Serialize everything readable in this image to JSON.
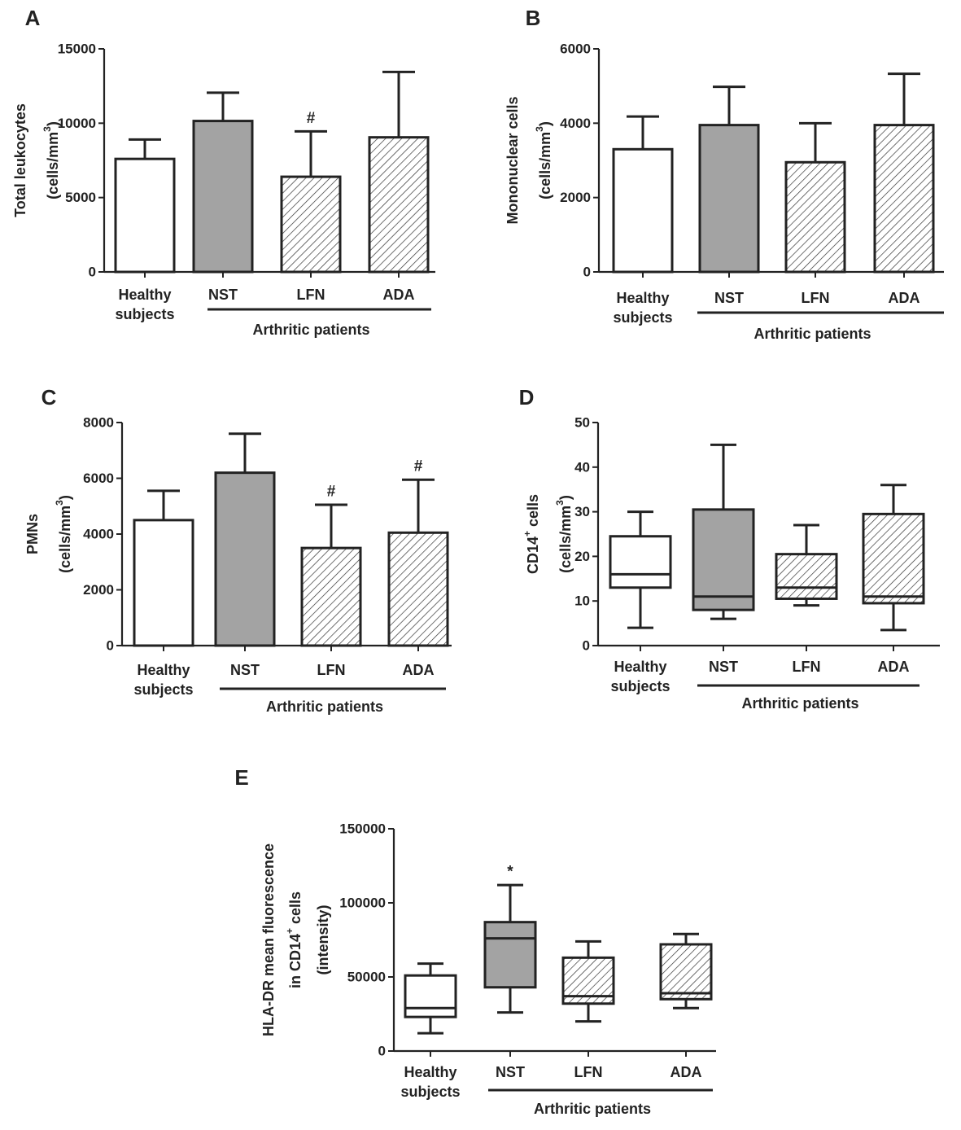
{
  "colors": {
    "axis": "#222222",
    "gray_fill": "#a3a3a3",
    "white_fill": "#ffffff",
    "hatch": "#333333",
    "text": "#222222"
  },
  "chart_data": [
    {
      "id": "A",
      "panel_label": "A",
      "type": "bar",
      "categories": [
        "Healthy subjects",
        "NST",
        "LFN",
        "ADA"
      ],
      "category_lines": [
        [
          "Healthy",
          "subjects"
        ],
        [
          "NST"
        ],
        [
          "LFN"
        ],
        [
          "ADA"
        ]
      ],
      "fills": [
        "white",
        "gray",
        "hatch",
        "hatch"
      ],
      "values": [
        7600,
        10150,
        6400,
        9050
      ],
      "errors": [
        1300,
        1900,
        3050,
        4400
      ],
      "annotations": [
        "",
        "",
        "#",
        ""
      ],
      "ylim": [
        0,
        15000
      ],
      "yticks": [
        0,
        5000,
        10000,
        15000
      ],
      "ylabel": "Total leukocytes",
      "ylabel_units_pre": "(cells/mm",
      "ylabel_units_sup": "3",
      "ylabel_units_post": ")",
      "group_label": "Arthritic patients"
    },
    {
      "id": "B",
      "panel_label": "B",
      "type": "bar",
      "categories": [
        "Healthy subjects",
        "NST",
        "LFN",
        "ADA"
      ],
      "category_lines": [
        [
          "Healthy",
          "subjects"
        ],
        [
          "NST"
        ],
        [
          "LFN"
        ],
        [
          "ADA"
        ]
      ],
      "fills": [
        "white",
        "gray",
        "hatch",
        "hatch"
      ],
      "values": [
        3300,
        3950,
        2950,
        3950
      ],
      "errors": [
        880,
        1030,
        1050,
        1380
      ],
      "annotations": [
        "",
        "",
        "",
        ""
      ],
      "ylim": [
        0,
        6000
      ],
      "yticks": [
        0,
        2000,
        4000,
        6000
      ],
      "ylabel": "Mononuclear cells",
      "ylabel_units_pre": "(cells/mm",
      "ylabel_units_sup": "3",
      "ylabel_units_post": ")",
      "group_label": "Arthritic patients"
    },
    {
      "id": "C",
      "panel_label": "C",
      "type": "bar",
      "categories": [
        "Healthy subjects",
        "NST",
        "LFN",
        "ADA"
      ],
      "category_lines": [
        [
          "Healthy",
          "subjects"
        ],
        [
          "NST"
        ],
        [
          "LFN"
        ],
        [
          "ADA"
        ]
      ],
      "fills": [
        "white",
        "gray",
        "hatch",
        "hatch"
      ],
      "values": [
        4500,
        6200,
        3500,
        4050
      ],
      "errors": [
        1050,
        1400,
        1550,
        1900
      ],
      "annotations": [
        "",
        "",
        "#",
        "#"
      ],
      "ylim": [
        0,
        8000
      ],
      "yticks": [
        0,
        2000,
        4000,
        6000,
        8000
      ],
      "ylabel": "PMNs",
      "ylabel_units_pre": "(cells/mm",
      "ylabel_units_sup": "3",
      "ylabel_units_post": ")",
      "group_label": "Arthritic patients"
    },
    {
      "id": "D",
      "panel_label": "D",
      "type": "box",
      "categories": [
        "Healthy subjects",
        "NST",
        "LFN",
        "ADA"
      ],
      "category_lines": [
        [
          "Healthy",
          "subjects"
        ],
        [
          "NST"
        ],
        [
          "LFN"
        ],
        [
          "ADA"
        ]
      ],
      "fills": [
        "white",
        "gray",
        "hatch",
        "hatch"
      ],
      "boxes": [
        {
          "min": 4,
          "q1": 13,
          "median": 16,
          "q3": 24.5,
          "max": 30
        },
        {
          "min": 6,
          "q1": 8,
          "median": 11,
          "q3": 30.5,
          "max": 45
        },
        {
          "min": 9,
          "q1": 10.5,
          "median": 13,
          "q3": 20.5,
          "max": 27
        },
        {
          "min": 3.5,
          "q1": 9.5,
          "median": 11,
          "q3": 29.5,
          "max": 36
        }
      ],
      "annotations": [
        "",
        "",
        "",
        ""
      ],
      "ylim": [
        0,
        50
      ],
      "yticks": [
        0,
        10,
        20,
        30,
        40,
        50
      ],
      "ylabel_pre": "CD14",
      "ylabel_sup": "+",
      "ylabel_post": " cells",
      "ylabel_units_pre": "(cells/mm",
      "ylabel_units_sup": "3",
      "ylabel_units_post": ")",
      "group_label": "Arthritic patients"
    },
    {
      "id": "E",
      "panel_label": "E",
      "type": "box",
      "categories": [
        "Healthy subjects",
        "NST",
        "LFN",
        "ADA"
      ],
      "category_lines": [
        [
          "Healthy",
          "subjects"
        ],
        [
          "NST"
        ],
        [
          "LFN"
        ],
        [
          "ADA"
        ]
      ],
      "fills": [
        "white",
        "gray",
        "hatch",
        "hatch"
      ],
      "boxes": [
        {
          "min": 12000,
          "q1": 23000,
          "median": 29000,
          "q3": 51000,
          "max": 59000
        },
        {
          "min": 26000,
          "q1": 43000,
          "median": 76000,
          "q3": 87000,
          "max": 112000
        },
        {
          "min": 20000,
          "q1": 32000,
          "median": 37000,
          "q3": 63000,
          "max": 74000
        },
        {
          "min": 29000,
          "q1": 35000,
          "median": 39000,
          "q3": 72000,
          "max": 79000
        }
      ],
      "annotations": [
        "",
        "*",
        "",
        ""
      ],
      "ylim": [
        0,
        150000
      ],
      "yticks": [
        0,
        50000,
        100000,
        150000
      ],
      "ylabel": "HLA-DR mean fluorescence",
      "ylabel2_pre": "in CD14",
      "ylabel2_sup": "+",
      "ylabel2_post": " cells",
      "ylabel3": "(intensity)",
      "group_label": "Arthritic patients"
    }
  ]
}
